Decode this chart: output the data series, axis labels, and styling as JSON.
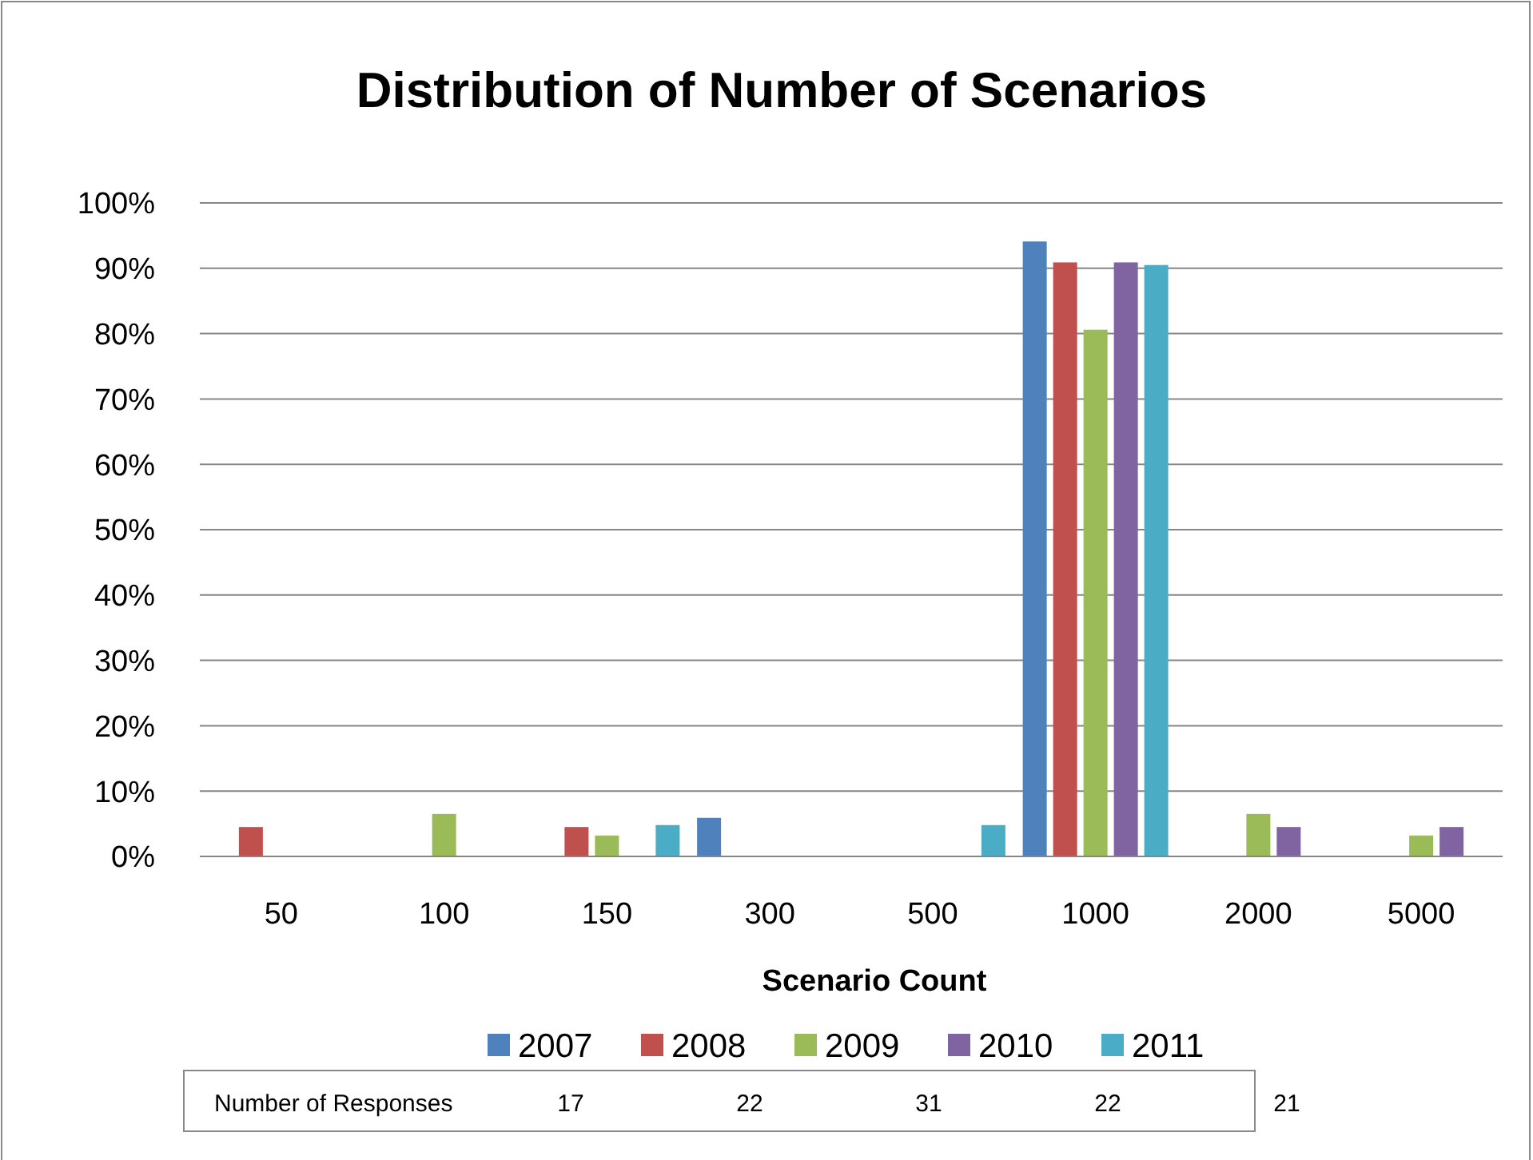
{
  "chart_data": {
    "type": "bar",
    "title": "Distribution of Number of Scenarios",
    "xlabel": "Scenario Count",
    "categories": [
      "50",
      "100",
      "150",
      "300",
      "500",
      "1000",
      "2000",
      "5000"
    ],
    "series": [
      {
        "name": "2007",
        "color": "#4f81bd",
        "values": [
          0,
          0,
          0,
          5.9,
          0,
          94.1,
          0,
          0
        ]
      },
      {
        "name": "2008",
        "color": "#c0504d",
        "values": [
          4.5,
          0,
          4.5,
          0,
          0,
          90.9,
          0,
          0
        ]
      },
      {
        "name": "2009",
        "color": "#9bbb59",
        "values": [
          0,
          6.5,
          3.2,
          0,
          0,
          80.6,
          6.5,
          3.2
        ]
      },
      {
        "name": "2010",
        "color": "#8064a2",
        "values": [
          0,
          0,
          0,
          0,
          0,
          90.9,
          4.5,
          4.5
        ]
      },
      {
        "name": "2011",
        "color": "#4bacc6",
        "values": [
          0,
          0,
          4.8,
          0,
          4.8,
          90.5,
          0,
          0
        ]
      }
    ],
    "ylim": [
      0,
      100
    ],
    "yticks": [
      {
        "value": 0,
        "label": "0%"
      },
      {
        "value": 10,
        "label": "10%"
      },
      {
        "value": 20,
        "label": "20%"
      },
      {
        "value": 30,
        "label": "30%"
      },
      {
        "value": 40,
        "label": "40%"
      },
      {
        "value": 50,
        "label": "50%"
      },
      {
        "value": 60,
        "label": "60%"
      },
      {
        "value": 70,
        "label": "70%"
      },
      {
        "value": 80,
        "label": "80%"
      },
      {
        "value": 90,
        "label": "90%"
      },
      {
        "value": 100,
        "label": "100%"
      }
    ],
    "grid": "y",
    "legend": "bottom",
    "annotations": [
      "Number of Responses",
      "17",
      "22",
      "31",
      "22",
      "21"
    ]
  }
}
